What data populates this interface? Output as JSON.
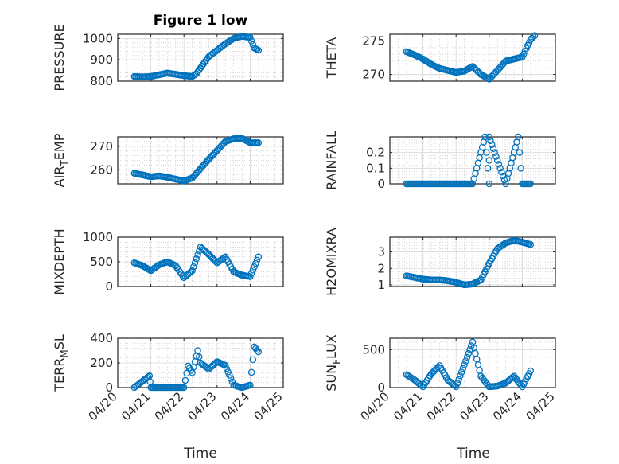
{
  "figure": {
    "title": "Figure 1 low"
  },
  "colors": {
    "marker": "#0072BD",
    "axis": "#262626",
    "grid": "#c8c8c8"
  },
  "chart_data": [
    {
      "type": "scatter",
      "ylabel": "PRESSURE",
      "ylabel_sub": "",
      "ylabel_tail": "",
      "ylim": [
        800,
        1020
      ],
      "yticks": [
        800,
        900,
        1000
      ],
      "ytick_labels": [
        "800",
        "900",
        "1000"
      ],
      "title": "Figure 1 low",
      "series": [
        {
          "x": [
            "04/20 12:00",
            "04/20 18:00",
            "04/21 00:00",
            "04/21 06:00",
            "04/21 12:00",
            "04/21 18:00",
            "04/22 00:00",
            "04/22 06:00",
            "04/22 09:00",
            "04/22 12:00",
            "04/22 18:00",
            "04/23 00:00",
            "04/23 06:00",
            "04/23 12:00",
            "04/23 18:00",
            "04/24 00:00",
            "04/24 03:00",
            "04/24 06:00"
          ],
          "y": [
            822,
            820,
            822,
            830,
            838,
            832,
            826,
            822,
            835,
            862,
            915,
            945,
            975,
            1000,
            1010,
            1005,
            955,
            945
          ]
        }
      ]
    },
    {
      "type": "scatter",
      "ylabel": "THETA",
      "ylabel_sub": "",
      "ylabel_tail": "",
      "ylim": [
        269,
        276
      ],
      "yticks": [
        270,
        275
      ],
      "ytick_labels": [
        "270",
        "275"
      ],
      "series": [
        {
          "x": [
            "04/20 12:00",
            "04/20 18:00",
            "04/21 00:00",
            "04/21 06:00",
            "04/21 12:00",
            "04/21 18:00",
            "04/22 00:00",
            "04/22 06:00",
            "04/22 12:00",
            "04/22 18:00",
            "04/23 00:00",
            "04/23 06:00",
            "04/23 12:00",
            "04/23 18:00",
            "04/24 00:00",
            "04/24 06:00",
            "04/24 09:00"
          ],
          "y": [
            273.4,
            272.9,
            272.3,
            271.5,
            270.9,
            270.6,
            270.3,
            270.5,
            271.2,
            270.0,
            269.3,
            270.6,
            272.0,
            272.3,
            272.6,
            275.2,
            275.8
          ]
        }
      ]
    },
    {
      "type": "scatter",
      "ylabel": "AIR",
      "ylabel_sub": "T",
      "ylabel_tail": "EMP",
      "ylim": [
        254,
        274
      ],
      "yticks": [
        260,
        270
      ],
      "ytick_labels": [
        "260",
        "270"
      ],
      "series": [
        {
          "x": [
            "04/20 12:00",
            "04/20 18:00",
            "04/21 00:00",
            "04/21 06:00",
            "04/21 12:00",
            "04/21 18:00",
            "04/22 00:00",
            "04/22 06:00",
            "04/22 12:00",
            "04/22 18:00",
            "04/23 00:00",
            "04/23 06:00",
            "04/23 12:00",
            "04/23 18:00",
            "04/24 00:00",
            "04/24 06:00"
          ],
          "y": [
            258.5,
            257.8,
            257.0,
            257.4,
            256.8,
            256.0,
            255.2,
            256.5,
            260.5,
            264.5,
            268.2,
            272.0,
            273.2,
            273.4,
            271.5,
            271.5
          ]
        }
      ]
    },
    {
      "type": "scatter",
      "ylabel": "RAINFALL",
      "ylabel_sub": "",
      "ylabel_tail": "",
      "ylim": [
        0,
        0.3
      ],
      "yticks": [
        0,
        0.1,
        0.2
      ],
      "ytick_labels": [
        "0",
        "0.1",
        "0.2"
      ],
      "series": [
        {
          "x": [
            "04/20 12:00",
            "04/21 00:00",
            "04/21 12:00",
            "04/22 00:00",
            "04/22 12:00",
            "04/23 00:00",
            "04/23 12:00",
            "04/24 00:00",
            "04/24 06:00",
            "04/22 21:00",
            "04/23 00:00",
            "04/23 21:00"
          ],
          "y": [
            0,
            0,
            0,
            0,
            0,
            0,
            0,
            0,
            0,
            0.3,
            0.3,
            0.3
          ]
        }
      ]
    },
    {
      "type": "scatter",
      "ylabel": "MIXDEPTH",
      "ylabel_sub": "",
      "ylabel_tail": "",
      "ylim": [
        0,
        1000
      ],
      "yticks": [
        0,
        500,
        1000
      ],
      "ytick_labels": [
        "0",
        "500",
        "1000"
      ],
      "series": [
        {
          "x": [
            "04/20 12:00",
            "04/20 18:00",
            "04/21 00:00",
            "04/21 06:00",
            "04/21 12:00",
            "04/21 18:00",
            "04/22 00:00",
            "04/22 06:00",
            "04/22 12:00",
            "04/22 18:00",
            "04/23 00:00",
            "04/23 06:00",
            "04/23 12:00",
            "04/23 18:00",
            "04/24 00:00",
            "04/24 06:00"
          ],
          "y": [
            480,
            420,
            320,
            440,
            500,
            420,
            180,
            320,
            800,
            650,
            480,
            600,
            300,
            230,
            200,
            600
          ]
        }
      ]
    },
    {
      "type": "scatter",
      "ylabel": "H2OMIXRA",
      "ylabel_sub": "",
      "ylabel_tail": "",
      "ylim": [
        0.9,
        3.9
      ],
      "yticks": [
        1,
        2,
        3
      ],
      "ytick_labels": [
        "1",
        "2",
        "3"
      ],
      "series": [
        {
          "x": [
            "04/20 12:00",
            "04/20 18:00",
            "04/21 00:00",
            "04/21 06:00",
            "04/21 12:00",
            "04/21 18:00",
            "04/22 00:00",
            "04/22 06:00",
            "04/22 12:00",
            "04/22 18:00",
            "04/23 00:00",
            "04/23 06:00",
            "04/23 12:00",
            "04/23 18:00",
            "04/24 00:00",
            "04/24 06:00"
          ],
          "y": [
            1.55,
            1.45,
            1.35,
            1.3,
            1.3,
            1.25,
            1.15,
            1.0,
            1.05,
            1.3,
            2.3,
            3.2,
            3.55,
            3.7,
            3.6,
            3.45
          ]
        }
      ]
    },
    {
      "type": "scatter",
      "ylabel": "TERR",
      "ylabel_sub": "M",
      "ylabel_tail": "SL",
      "ylim": [
        0,
        400
      ],
      "yticks": [
        0,
        200,
        400
      ],
      "ytick_labels": [
        "0",
        "200",
        "400"
      ],
      "series": [
        {
          "x": [
            "04/20 12:00",
            "04/21 00:00",
            "04/20 23:00",
            "04/21 12:00",
            "04/22 00:00",
            "04/22 03:00",
            "04/22 06:00",
            "04/22 10:00",
            "04/22 12:00",
            "04/22 18:00",
            "04/23 00:00",
            "04/23 06:00",
            "04/23 12:00",
            "04/23 18:00",
            "04/24 00:00",
            "04/24 03:00",
            "04/24 06:00"
          ],
          "y": [
            0,
            0,
            95,
            0,
            0,
            175,
            120,
            300,
            200,
            150,
            210,
            180,
            20,
            0,
            20,
            330,
            290
          ]
        }
      ]
    },
    {
      "type": "scatter",
      "ylabel": "SUN",
      "ylabel_sub": "F",
      "ylabel_tail": "LUX",
      "ylim": [
        0,
        650
      ],
      "yticks": [
        0,
        500
      ],
      "ytick_labels": [
        "0",
        "500"
      ],
      "series": [
        {
          "x": [
            "04/20 12:00",
            "04/20 18:00",
            "04/21 00:00",
            "04/21 06:00",
            "04/21 12:00",
            "04/21 18:00",
            "04/22 00:00",
            "04/22 06:00",
            "04/22 12:00",
            "04/22 18:00",
            "04/23 00:00",
            "04/23 06:00",
            "04/23 12:00",
            "04/23 18:00",
            "04/24 00:00",
            "04/24 06:00"
          ],
          "y": [
            170,
            100,
            10,
            180,
            290,
            100,
            10,
            300,
            600,
            150,
            10,
            20,
            60,
            150,
            10,
            220
          ]
        }
      ]
    }
  ],
  "xaxis": {
    "xlim": [
      "04/20 00:00",
      "04/25 00:00"
    ],
    "tick_labels": [
      "04/20",
      "04/21",
      "04/22",
      "04/23",
      "04/24",
      "04/25"
    ],
    "xlabel": "Time"
  }
}
